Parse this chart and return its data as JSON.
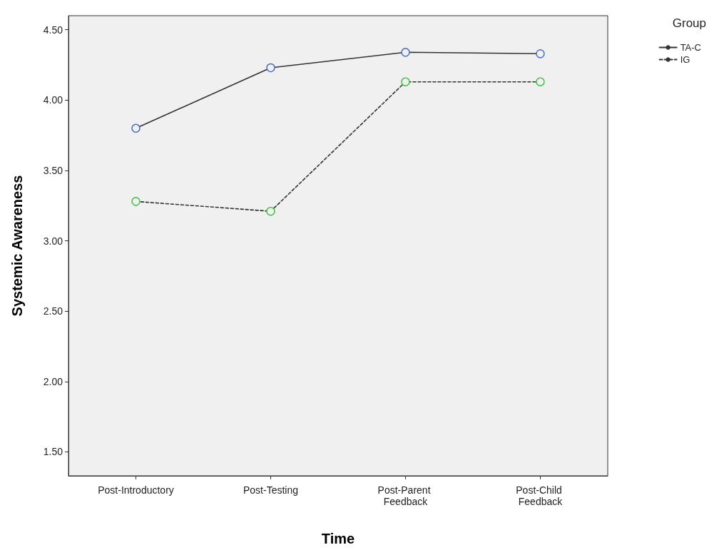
{
  "chart_data": {
    "type": "line",
    "xlabel": "Time",
    "ylabel": "Systemic Awareness",
    "legend_title": "Group",
    "categories": [
      "Post-Introductory",
      "Post-Testing",
      "Post-Parent Feedback",
      "Post-Child Feedback"
    ],
    "series": [
      {
        "name": "TA-C",
        "color": "#333333",
        "colors": [
          "#4a6bc6",
          "#4a6bc6",
          "#4a6bc6",
          "#4a6bc6"
        ],
        "line_style": "solid",
        "values": [
          3.8,
          4.23,
          4.34,
          4.33
        ]
      },
      {
        "name": "IG",
        "color": "#333333",
        "colors": [
          "#3cc43c",
          "#3cc43c",
          "#3cc43c",
          "#3cc43c"
        ],
        "line_style": "dashed",
        "values": [
          3.28,
          3.21,
          4.13,
          4.13
        ]
      }
    ],
    "ylim": [
      1.33,
      4.6
    ],
    "yticks": [
      {
        "value": 1.5,
        "label": "1.50"
      },
      {
        "value": 2,
        "label": "2.00"
      },
      {
        "value": 2.5,
        "label": "2.50"
      },
      {
        "value": 3,
        "label": "3.00"
      },
      {
        "value": 3.5,
        "label": "3.50"
      },
      {
        "value": 4,
        "label": "4.00"
      },
      {
        "value": 4.5,
        "label": "4.50"
      }
    ],
    "marker": "circle",
    "grid": false,
    "legend": "top right"
  }
}
